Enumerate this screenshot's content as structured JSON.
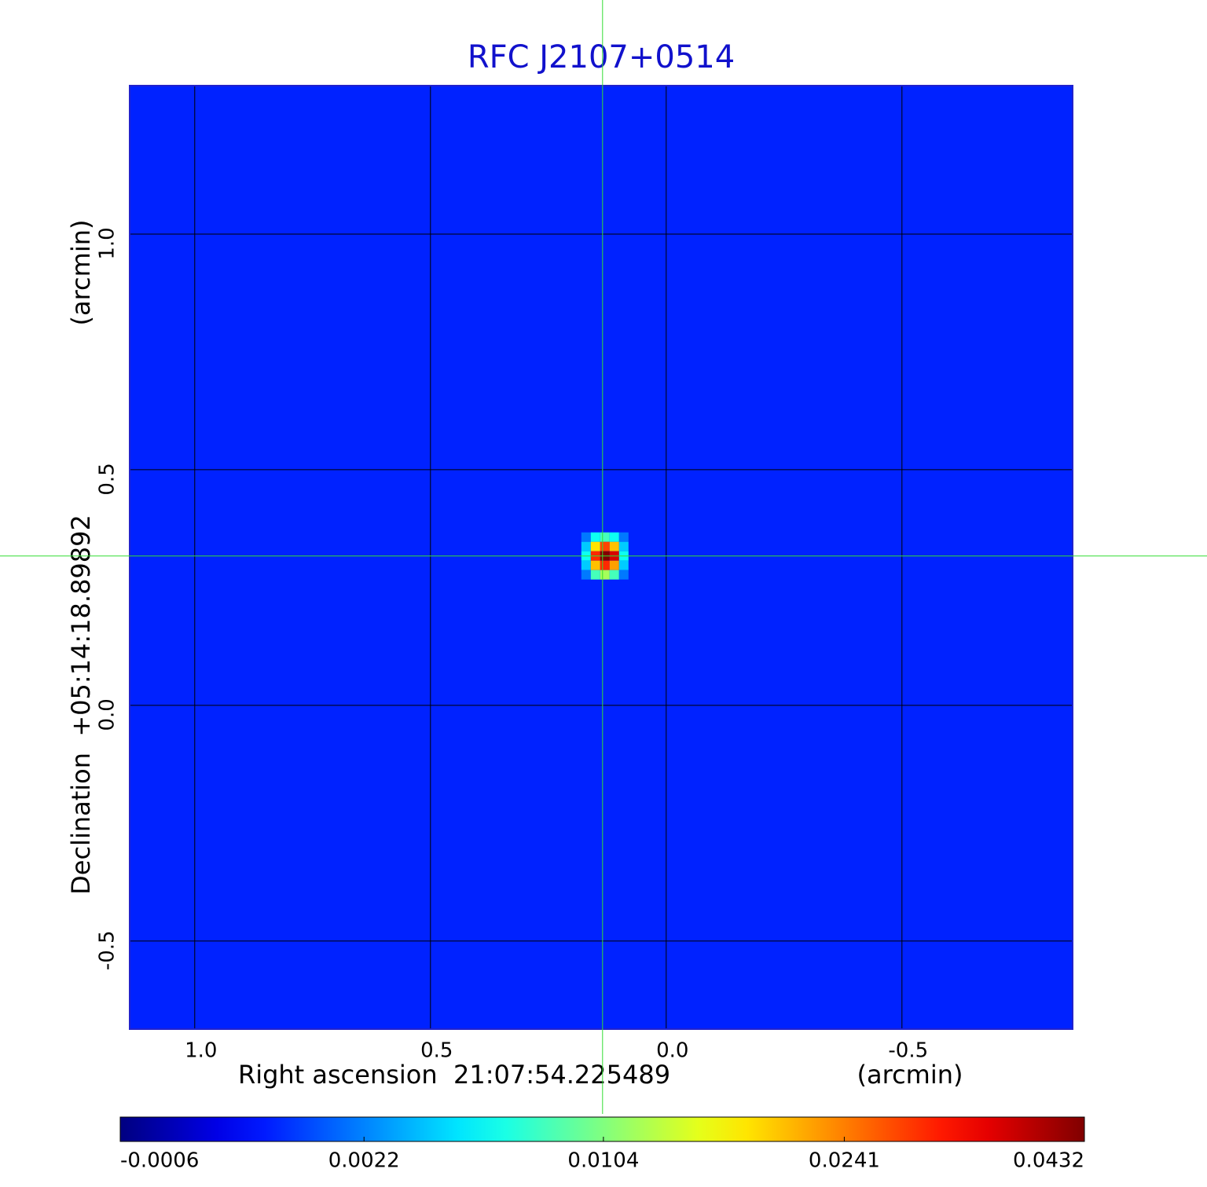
{
  "chart_data": {
    "type": "image",
    "title": "RFC J2107+0514",
    "xlabel": "Right ascension  21:07:54.225489",
    "xunit": "(arcmin)",
    "ylabel": "Declination  +05:14:18.89892",
    "yunit": "(arcmin)",
    "xlim": [
      1.138,
      -0.862
    ],
    "ylim": [
      -0.687,
      1.315
    ],
    "xticks": [
      {
        "value": 1.0,
        "label": "1.0"
      },
      0.5,
      {
        "value": 0.0,
        "label": "0.0"
      },
      -0.5
    ],
    "yticks": [
      -0.5,
      {
        "value": 0.0,
        "label": "0.0"
      },
      0.5,
      {
        "value": 1.0,
        "label": "1.0"
      }
    ],
    "grid": true,
    "colormap": "jet",
    "colorbar_scale": "sqrt",
    "clim": [
      -0.0006,
      0.0432
    ],
    "colorbar_ticks": [
      -0.0006,
      0.0022,
      0.0104,
      0.0241,
      0.0432
    ],
    "background": 0.0005,
    "source": {
      "x": [
        0.17,
        0.15,
        0.13,
        0.11,
        0.09
      ],
      "y": [
        0.357,
        0.337,
        0.317,
        0.297,
        0.277
      ],
      "values": [
        [
          0.002,
          0.006,
          0.008,
          0.006,
          0.002
        ],
        [
          0.004,
          0.018,
          0.028,
          0.02,
          0.004
        ],
        [
          0.006,
          0.03,
          0.0432,
          0.036,
          0.006
        ],
        [
          0.004,
          0.02,
          0.03,
          0.022,
          0.004
        ],
        [
          0.002,
          0.008,
          0.012,
          0.008,
          0.002
        ]
      ]
    },
    "pixel_size": 0.02,
    "crosshair": {
      "x": 0.135,
      "y": 0.317
    }
  }
}
